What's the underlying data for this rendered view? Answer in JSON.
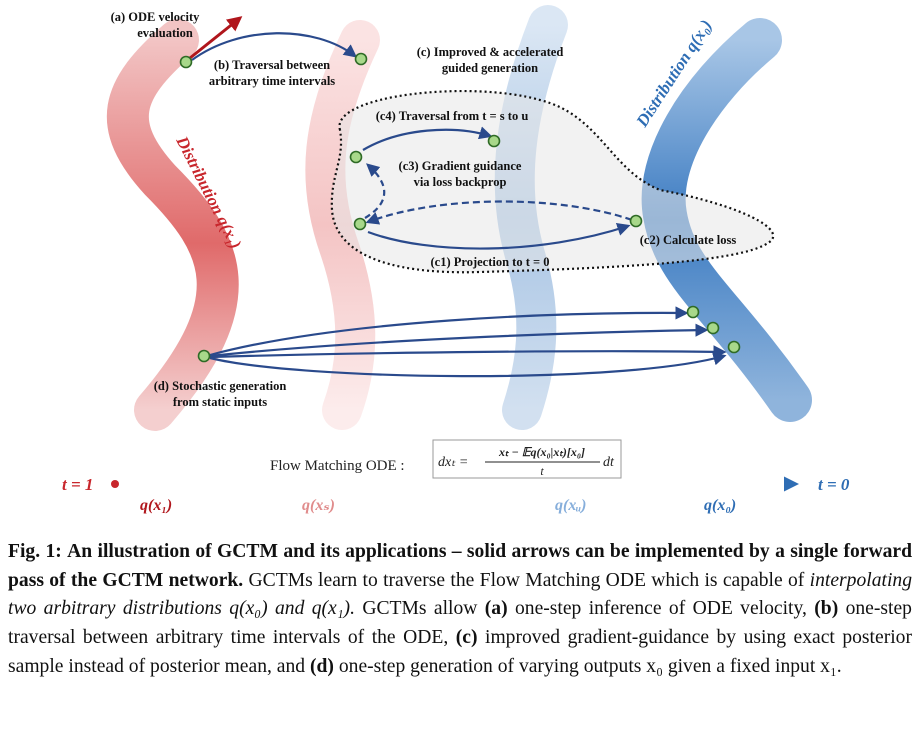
{
  "labels": {
    "a_line1": "(a) ODE velocity",
    "a_line2": "evaluation",
    "b_line1": "(b) Traversal between",
    "b_line2": "arbitrary time intervals",
    "c_line1": "(c) Improved & accelerated",
    "c_line2": "guided generation",
    "c4": "(c4) Traversal from t = s to u",
    "c3_line1": "(c3) Gradient guidance",
    "c3_line2": "via loss backprop",
    "c2": "(c2) Calculate loss",
    "c1": "(c1) Projection to t = 0",
    "d_line1": "(d) Stochastic generation",
    "d_line2": "from static inputs"
  },
  "distributions": {
    "x1": "Distribution q(x₁)",
    "x0": "Distribution q(x₀)"
  },
  "equation": {
    "prefix": "Flow Matching ODE :",
    "lhs": "dxₜ =",
    "numerator": "xₜ − 𝔼q(x₀|xₜ)[x₀]",
    "denominator": "t",
    "suffix": "dt"
  },
  "timeline": {
    "start": "t = 1",
    "end": "t = 0",
    "marks": [
      "q(x₁)",
      "q(xₛ)",
      "q(xᵤ)",
      "q(x₀)"
    ]
  },
  "colors": {
    "red": "#c8262c",
    "blue": "#2e6db4",
    "navy": "#2a4a8c",
    "dot_fill": "#a8d88a",
    "dot_stroke": "#2f6b26",
    "light_red": "#e28a8a",
    "light_blue": "#84add8"
  },
  "caption": {
    "fig": "Fig. 1:",
    "title": "An illustration of GCTM and its applications – solid arrows can be implemented by a single forward pass of the GCTM network.",
    "t1": "GCTMs learn to traverse the Flow Matching ODE which is capable of",
    "t2_italic": "interpolating two arbitrary distributions",
    "t3": "q(x₀) and q(x₁).",
    "t4": "GCTMs allow",
    "a": "(a)",
    "t5": "one-step inference of ODE velocity,",
    "b": "(b)",
    "t6": "one-step traversal between arbitrary time intervals of the ODE,",
    "c": "(c)",
    "t7": "improved gradient-guidance by using exact posterior sample instead of posterior mean, and",
    "d": "(d)",
    "t8": "one-step generation of varying outputs x₀ given a fixed input x₁."
  }
}
